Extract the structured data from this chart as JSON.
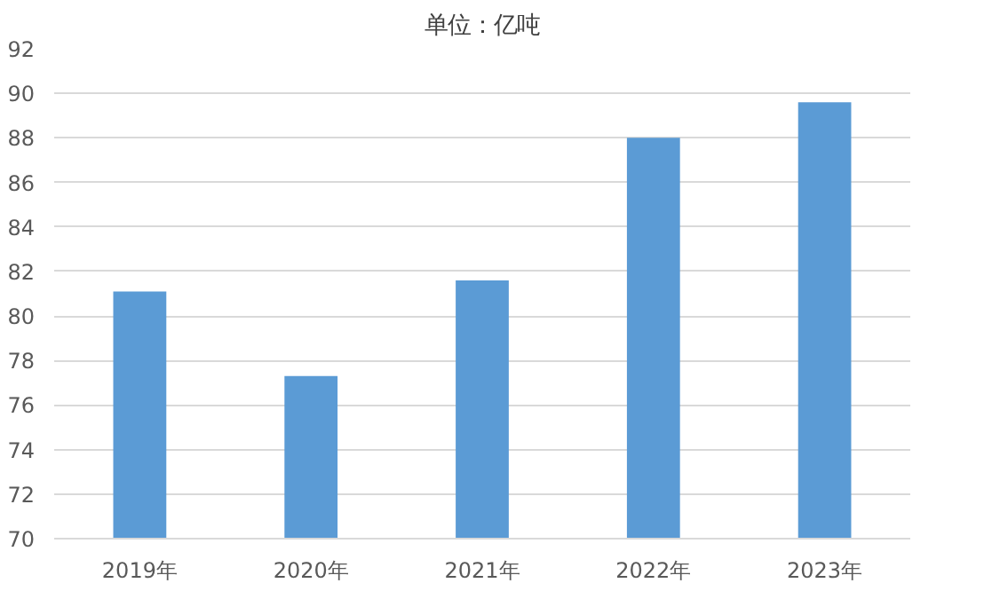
{
  "chart_data": {
    "type": "bar",
    "title": "单位：亿吨",
    "categories": [
      "2019年",
      "2020年",
      "2021年",
      "2022年",
      "2023年"
    ],
    "values": [
      81.1,
      77.3,
      81.6,
      88.0,
      89.6
    ],
    "color": "#5b9bd5",
    "ylim": [
      70,
      92
    ],
    "yticks": [
      70,
      72,
      74,
      76,
      78,
      80,
      82,
      84,
      86,
      88,
      90,
      92
    ],
    "grid": "y"
  }
}
